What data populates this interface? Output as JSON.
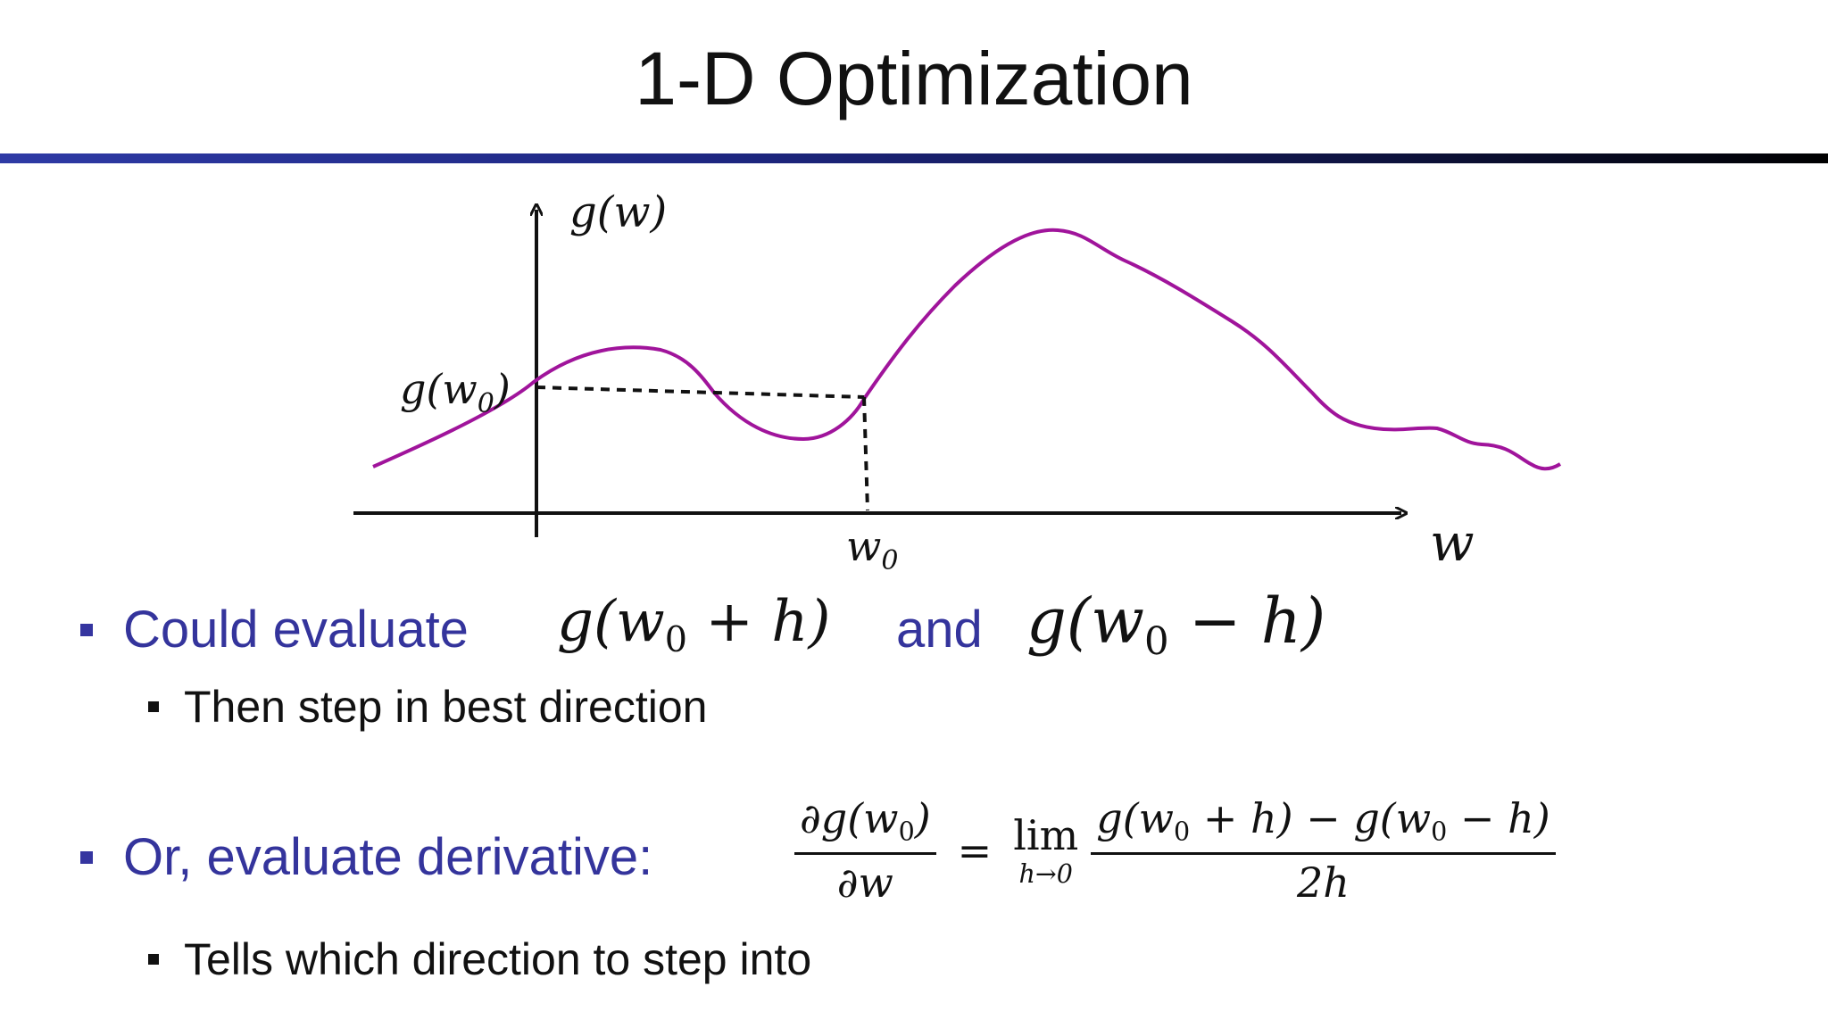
{
  "slide": {
    "title": "1-D Optimization"
  },
  "figure": {
    "y_axis_label": "g(w)",
    "x_axis_label": "w",
    "point_y_label_base": "g(w",
    "point_y_label_sub": "0",
    "point_x_label_base": "w",
    "point_x_label_sub": "0",
    "curve_color": "#a0149b",
    "axis_color": "#111111"
  },
  "bullets": [
    {
      "text": "Could evaluate",
      "expr1": {
        "pre": "g(w",
        "sub": "0",
        "post": " + h)"
      },
      "connector": "and",
      "expr2": {
        "pre": "g(w",
        "sub": "0",
        "post": " − h)"
      },
      "children": [
        {
          "text": "Then step in best direction"
        }
      ]
    },
    {
      "text": "Or, evaluate derivative:",
      "formula": {
        "lhs_num": "∂g(w",
        "lhs_num_sub": "0",
        "lhs_num_post": ")",
        "lhs_den": "∂w",
        "equals": "=",
        "lim": "lim",
        "lim_under": "h→0",
        "rhs_num_a": "g(w",
        "rhs_num_a_sub": "0",
        "rhs_num_mid": " + h) − g(w",
        "rhs_num_b_sub": "0",
        "rhs_num_post": " − h)",
        "rhs_den": "2h"
      },
      "children": [
        {
          "text": "Tells which direction to step into"
        }
      ]
    }
  ],
  "colors": {
    "bullet_level1": "#34349c",
    "rule_start": "#2e3aa5",
    "rule_end": "#000000"
  }
}
